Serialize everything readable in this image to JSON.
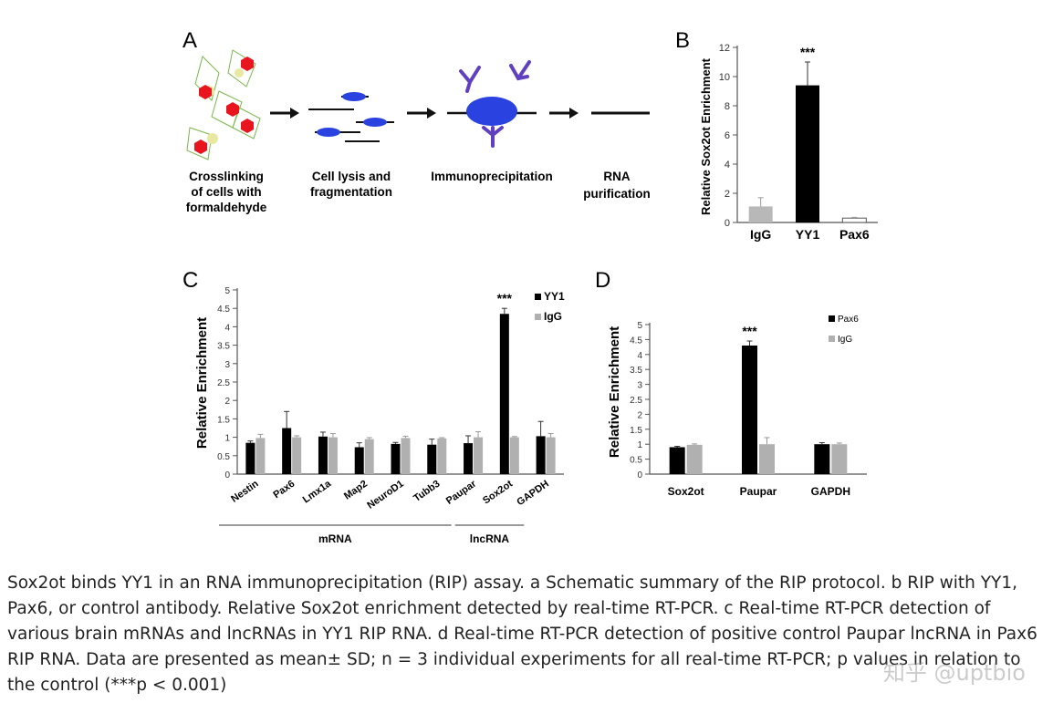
{
  "panels": {
    "a": {
      "letter": "A",
      "steps": [
        {
          "lines": [
            "Crosslinking",
            "of cells with",
            "formaldehyde"
          ]
        },
        {
          "lines": [
            "Cell lysis and",
            "fragmentation"
          ]
        },
        {
          "lines": [
            "Immunoprecipitation"
          ]
        },
        {
          "lines": [
            "RNA",
            "purification"
          ]
        }
      ]
    },
    "b": {
      "letter": "B"
    },
    "c": {
      "letter": "C"
    },
    "d": {
      "letter": "D"
    }
  },
  "chart_data": [
    {
      "id": "b",
      "type": "bar",
      "ylabel": "Relative Sox2ot Enrichment",
      "ylim": [
        0,
        12
      ],
      "yticks": [
        0,
        2,
        4,
        6,
        8,
        10,
        12
      ],
      "categories": [
        "IgG",
        "YY1",
        "Pax6"
      ],
      "series": [
        {
          "values": [
            1.1,
            9.4,
            0.3
          ],
          "errors": [
            0.6,
            1.6,
            0.05
          ],
          "colors": [
            "#b8b8b8",
            "#000000",
            "#ffffff"
          ]
        }
      ],
      "annotations": [
        {
          "category": "YY1",
          "text": "***"
        }
      ]
    },
    {
      "id": "c",
      "type": "bar",
      "ylabel": "Relative Enrichment",
      "ylim": [
        0,
        5
      ],
      "yticks": [
        0,
        0.5,
        1,
        1.5,
        2,
        2.5,
        3,
        3.5,
        4,
        4.5,
        5
      ],
      "categories": [
        "Nestin",
        "Pax6",
        "Lmx1a",
        "Map2",
        "NeuroD1",
        "Tubb3",
        "Paupar",
        "Sox2ot",
        "GAPDH"
      ],
      "series": [
        {
          "name": "YY1",
          "color": "#000000",
          "values": [
            0.85,
            1.25,
            1.02,
            0.73,
            0.82,
            0.8,
            0.84,
            4.35,
            1.03
          ],
          "errors": [
            0.05,
            0.45,
            0.12,
            0.12,
            0.04,
            0.15,
            0.2,
            0.15,
            0.4
          ]
        },
        {
          "name": "IgG",
          "color": "#b0b0b0",
          "values": [
            0.98,
            1.0,
            1.0,
            0.95,
            0.98,
            0.97,
            1.0,
            1.0,
            1.0
          ],
          "errors": [
            0.1,
            0.04,
            0.1,
            0.04,
            0.05,
            0.02,
            0.15,
            0.02,
            0.1
          ]
        }
      ],
      "groups": [
        {
          "label": "mRNA",
          "from": "Nestin",
          "to": "Tubb3"
        },
        {
          "label": "lncRNA",
          "from": "Paupar",
          "to": "Sox2ot"
        }
      ],
      "annotations": [
        {
          "category": "Sox2ot",
          "text": "***"
        }
      ],
      "legend": "top-right"
    },
    {
      "id": "d",
      "type": "bar",
      "ylabel": "Relative Enrichment",
      "ylim": [
        0,
        5
      ],
      "yticks": [
        0,
        0.5,
        1,
        1.5,
        2,
        2.5,
        3,
        3.5,
        4,
        4.5,
        5
      ],
      "categories": [
        "Sox2ot",
        "Paupar",
        "GAPDH"
      ],
      "series": [
        {
          "name": "Pax6",
          "color": "#000000",
          "values": [
            0.9,
            4.3,
            1.0
          ],
          "errors": [
            0.03,
            0.15,
            0.05
          ]
        },
        {
          "name": "IgG",
          "color": "#b0b0b0",
          "values": [
            0.98,
            1.0,
            1.0
          ],
          "errors": [
            0.03,
            0.22,
            0.04
          ]
        }
      ],
      "annotations": [
        {
          "category": "Paupar",
          "text": "***"
        }
      ],
      "legend": "top-right"
    }
  ],
  "caption": "Sox2ot binds YY1 in an RNA immunoprecipitation (RIP) assay. a Schematic summary of the RIP protocol. b RIP with YY1, Pax6, or control antibody. Relative Sox2ot enrichment detected by real-time RT-PCR. c Real-time RT-PCR detection of various brain mRNAs and lncRNAs in YY1 RIP RNA. d Real-time RT-PCR detection of positive control Paupar lncRNA in Pax6 RIP RNA. Data are presented as mean± SD; n = 3 individual experiments for all real-time RT-PCR; p values in relation to the control (***p < 0.001)",
  "watermark": "知乎 @uptbio"
}
